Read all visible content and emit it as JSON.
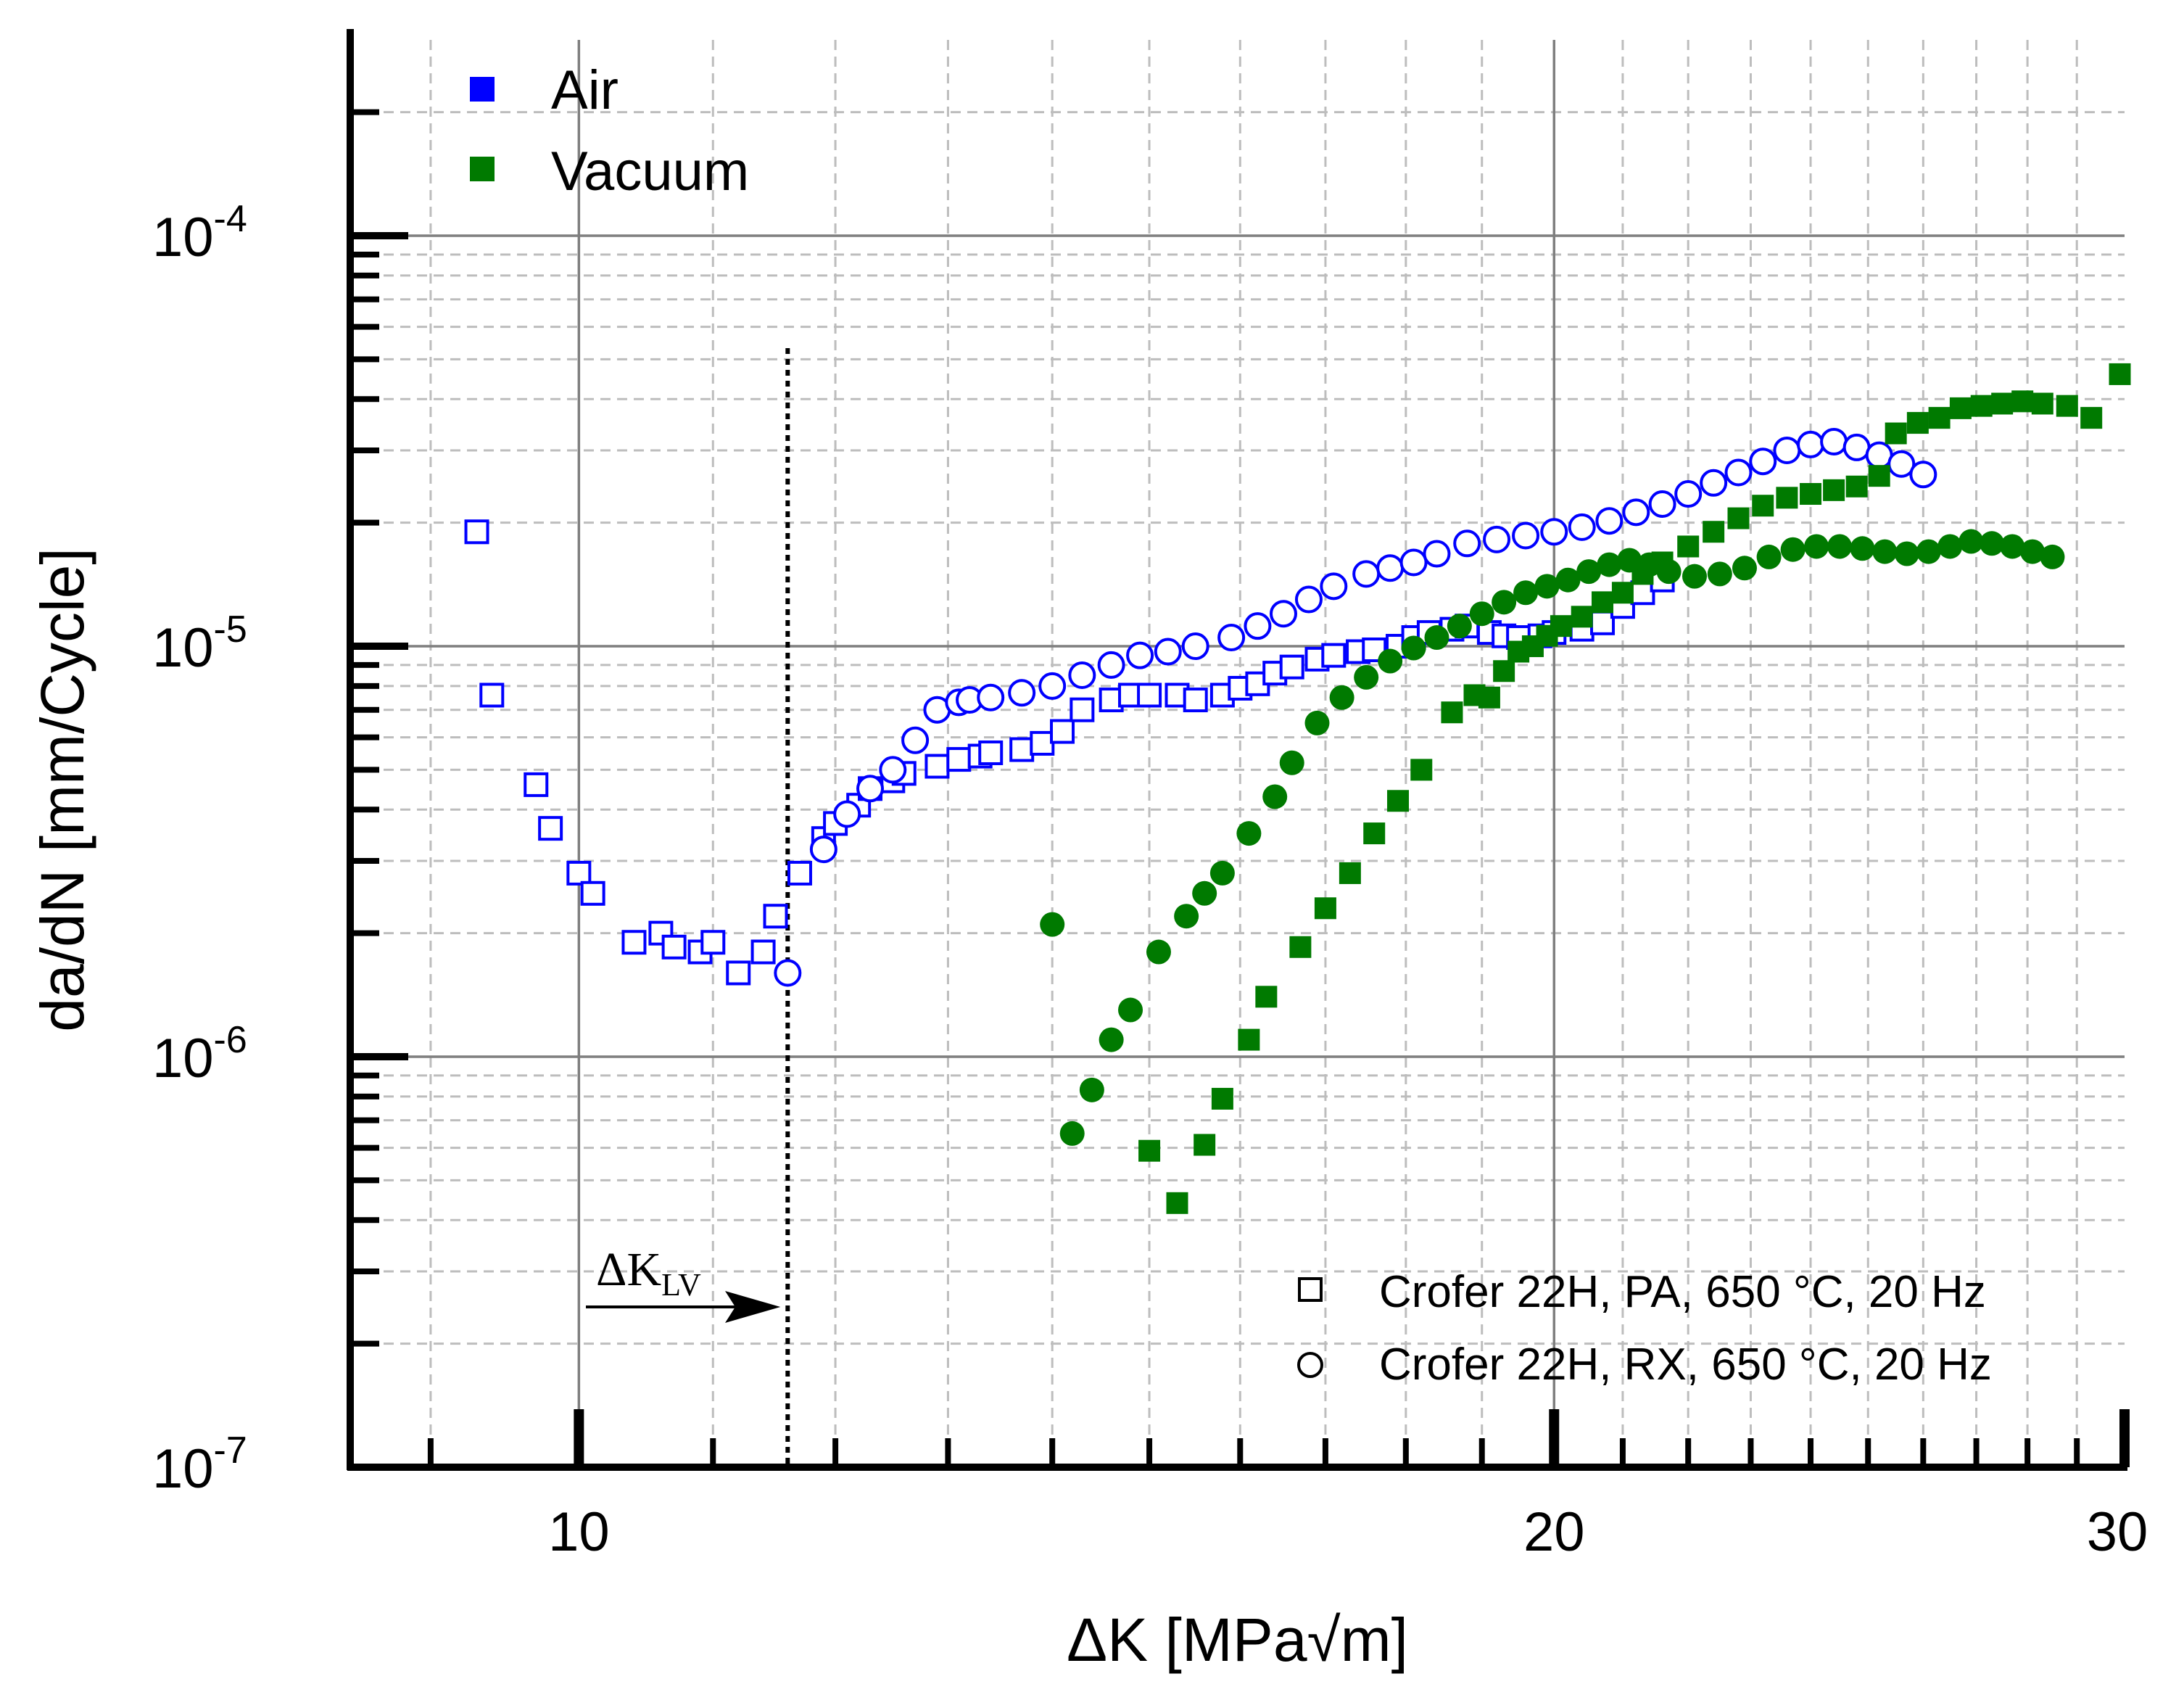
{
  "chart_data": {
    "type": "scatter",
    "x_scale": "log",
    "y_scale": "log",
    "xlim": [
      8.5,
      30
    ],
    "ylim": [
      1e-07,
      0.0003
    ],
    "grid": true,
    "xlabel": "ΔK [MPa√m]",
    "ylabel": "da/dN [mm/Cycle]",
    "x_ticks": [
      {
        "value": 10,
        "label": "10"
      },
      {
        "value": 20,
        "label": "20"
      },
      {
        "value": 30,
        "label": "30"
      }
    ],
    "y_ticks": [
      {
        "value": 1e-07,
        "base": "10",
        "exp": "-7"
      },
      {
        "value": 1e-06,
        "base": "10",
        "exp": "-6"
      },
      {
        "value": 1e-05,
        "base": "10",
        "exp": "-5"
      },
      {
        "value": 0.0001,
        "base": "10",
        "exp": "-4"
      }
    ],
    "color_legend": [
      {
        "label": "Air",
        "color": "#0000ff"
      },
      {
        "label": "Vacuum",
        "color": "#007a00"
      }
    ],
    "marker_legend": [
      {
        "marker": "square",
        "label": "Crofer 22H, PA, 650 °C, 20 Hz"
      },
      {
        "marker": "circle",
        "label": "Crofer 22H, RX, 650 °C, 20 Hz"
      }
    ],
    "annotation": {
      "text": "ΔK",
      "subscript": "LV",
      "x_value": 11.6
    },
    "series": [
      {
        "name": "Air, Crofer 22H, PA",
        "color": "#0000ff",
        "marker": "square",
        "filled": false,
        "points": [
          [
            9.3,
            1.9e-05
          ],
          [
            9.4,
            7.6e-06
          ],
          [
            9.7,
            4.6e-06
          ],
          [
            9.8,
            3.6e-06
          ],
          [
            10.0,
            2.8e-06
          ],
          [
            10.1,
            2.5e-06
          ],
          [
            10.4,
            1.9e-06
          ],
          [
            10.6,
            2e-06
          ],
          [
            10.7,
            1.85e-06
          ],
          [
            10.9,
            1.8e-06
          ],
          [
            11.0,
            1.9e-06
          ],
          [
            11.2,
            1.6e-06
          ],
          [
            11.4,
            1.8e-06
          ],
          [
            11.5,
            2.2e-06
          ],
          [
            11.7,
            2.8e-06
          ],
          [
            11.9,
            3.4e-06
          ],
          [
            12.0,
            3.7e-06
          ],
          [
            12.2,
            4.1e-06
          ],
          [
            12.3,
            4.5e-06
          ],
          [
            12.5,
            4.7e-06
          ],
          [
            12.6,
            4.9e-06
          ],
          [
            12.9,
            5.1e-06
          ],
          [
            13.1,
            5.3e-06
          ],
          [
            13.3,
            5.4e-06
          ],
          [
            13.4,
            5.5e-06
          ],
          [
            13.7,
            5.6e-06
          ],
          [
            13.9,
            5.8e-06
          ],
          [
            14.1,
            6.2e-06
          ],
          [
            14.3,
            7e-06
          ],
          [
            14.6,
            7.4e-06
          ],
          [
            14.8,
            7.6e-06
          ],
          [
            15.0,
            7.6e-06
          ],
          [
            15.3,
            7.6e-06
          ],
          [
            15.5,
            7.4e-06
          ],
          [
            15.8,
            7.6e-06
          ],
          [
            16.0,
            7.9e-06
          ],
          [
            16.2,
            8.1e-06
          ],
          [
            16.4,
            8.6e-06
          ],
          [
            16.6,
            8.9e-06
          ],
          [
            16.9,
            9.3e-06
          ],
          [
            17.1,
            9.5e-06
          ],
          [
            17.4,
            9.7e-06
          ],
          [
            17.6,
            9.8e-06
          ],
          [
            17.9,
            1e-05
          ],
          [
            18.1,
            1.05e-05
          ],
          [
            18.3,
            1.08e-05
          ],
          [
            18.6,
            1.1e-05
          ],
          [
            18.8,
            1.12e-05
          ],
          [
            19.1,
            1.08e-05
          ],
          [
            19.3,
            1.06e-05
          ],
          [
            19.5,
            1.05e-05
          ],
          [
            19.8,
            1.06e-05
          ],
          [
            20.0,
            1.08e-05
          ],
          [
            20.4,
            1.1e-05
          ],
          [
            20.7,
            1.14e-05
          ],
          [
            21.0,
            1.25e-05
          ],
          [
            21.3,
            1.35e-05
          ],
          [
            21.6,
            1.45e-05
          ]
        ]
      },
      {
        "name": "Air, Crofer 22H, RX",
        "color": "#0000ff",
        "marker": "circle",
        "filled": false,
        "points": [
          [
            11.6,
            1.6e-06
          ],
          [
            11.9,
            3.2e-06
          ],
          [
            12.1,
            3.9e-06
          ],
          [
            12.3,
            4.5e-06
          ],
          [
            12.5,
            5e-06
          ],
          [
            12.7,
            5.9e-06
          ],
          [
            12.9,
            7e-06
          ],
          [
            13.1,
            7.3e-06
          ],
          [
            13.2,
            7.4e-06
          ],
          [
            13.4,
            7.5e-06
          ],
          [
            13.7,
            7.7e-06
          ],
          [
            14.0,
            8e-06
          ],
          [
            14.3,
            8.5e-06
          ],
          [
            14.6,
            9e-06
          ],
          [
            14.9,
            9.5e-06
          ],
          [
            15.2,
            9.7e-06
          ],
          [
            15.5,
            1e-05
          ],
          [
            15.9,
            1.05e-05
          ],
          [
            16.2,
            1.12e-05
          ],
          [
            16.5,
            1.2e-05
          ],
          [
            16.8,
            1.3e-05
          ],
          [
            17.1,
            1.4e-05
          ],
          [
            17.5,
            1.5e-05
          ],
          [
            17.8,
            1.55e-05
          ],
          [
            18.1,
            1.6e-05
          ],
          [
            18.4,
            1.68e-05
          ],
          [
            18.8,
            1.78e-05
          ],
          [
            19.2,
            1.82e-05
          ],
          [
            19.6,
            1.86e-05
          ],
          [
            20.0,
            1.9e-05
          ],
          [
            20.4,
            1.95e-05
          ],
          [
            20.8,
            2.02e-05
          ],
          [
            21.2,
            2.12e-05
          ],
          [
            21.6,
            2.22e-05
          ],
          [
            22.0,
            2.35e-05
          ],
          [
            22.4,
            2.5e-05
          ],
          [
            22.8,
            2.65e-05
          ],
          [
            23.2,
            2.82e-05
          ],
          [
            23.6,
            3e-05
          ],
          [
            24.0,
            3.1e-05
          ],
          [
            24.4,
            3.15e-05
          ],
          [
            24.8,
            3.05e-05
          ],
          [
            25.2,
            2.92e-05
          ],
          [
            25.6,
            2.78e-05
          ],
          [
            26.0,
            2.62e-05
          ]
        ]
      },
      {
        "name": "Vacuum, Crofer 22H, PA",
        "color": "#007a00",
        "marker": "square",
        "filled": true,
        "points": [
          [
            15.0,
            5.9e-07
          ],
          [
            15.3,
            4.4e-07
          ],
          [
            15.6,
            6.1e-07
          ],
          [
            15.8,
            7.9e-07
          ],
          [
            16.1,
            1.1e-06
          ],
          [
            16.3,
            1.4e-06
          ],
          [
            16.7,
            1.85e-06
          ],
          [
            17.0,
            2.3e-06
          ],
          [
            17.3,
            2.8e-06
          ],
          [
            17.6,
            3.5e-06
          ],
          [
            17.9,
            4.2e-06
          ],
          [
            18.2,
            5e-06
          ],
          [
            18.6,
            6.9e-06
          ],
          [
            18.9,
            7.6e-06
          ],
          [
            19.1,
            7.5e-06
          ],
          [
            19.3,
            8.7e-06
          ],
          [
            19.5,
            9.7e-06
          ],
          [
            19.7,
            1e-05
          ],
          [
            19.9,
            1.06e-05
          ],
          [
            20.1,
            1.12e-05
          ],
          [
            20.4,
            1.18e-05
          ],
          [
            20.7,
            1.28e-05
          ],
          [
            21.0,
            1.35e-05
          ],
          [
            21.3,
            1.5e-05
          ],
          [
            21.6,
            1.6e-05
          ],
          [
            22.0,
            1.75e-05
          ],
          [
            22.4,
            1.9e-05
          ],
          [
            22.8,
            2.05e-05
          ],
          [
            23.2,
            2.2e-05
          ],
          [
            23.6,
            2.3e-05
          ],
          [
            24.0,
            2.35e-05
          ],
          [
            24.4,
            2.4e-05
          ],
          [
            24.8,
            2.45e-05
          ],
          [
            25.2,
            2.6e-05
          ],
          [
            25.5,
            3.3e-05
          ],
          [
            25.9,
            3.5e-05
          ],
          [
            26.3,
            3.6e-05
          ],
          [
            26.7,
            3.8e-05
          ],
          [
            27.1,
            3.85e-05
          ],
          [
            27.5,
            3.9e-05
          ],
          [
            27.9,
            3.95e-05
          ],
          [
            28.3,
            3.9e-05
          ],
          [
            28.8,
            3.85e-05
          ],
          [
            29.3,
            3.6e-05
          ],
          [
            29.9,
            4.6e-05
          ]
        ]
      },
      {
        "name": "Vacuum, Crofer 22H, RX",
        "color": "#007a00",
        "marker": "circle",
        "filled": true,
        "points": [
          [
            14.0,
            2.1e-06
          ],
          [
            14.2,
            6.5e-07
          ],
          [
            14.4,
            8.3e-07
          ],
          [
            14.6,
            1.1e-06
          ],
          [
            14.8,
            1.3e-06
          ],
          [
            15.1,
            1.8e-06
          ],
          [
            15.4,
            2.2e-06
          ],
          [
            15.6,
            2.5e-06
          ],
          [
            15.8,
            2.8e-06
          ],
          [
            16.1,
            3.5e-06
          ],
          [
            16.4,
            4.3e-06
          ],
          [
            16.6,
            5.2e-06
          ],
          [
            16.9,
            6.5e-06
          ],
          [
            17.2,
            7.5e-06
          ],
          [
            17.5,
            8.4e-06
          ],
          [
            17.8,
            9.2e-06
          ],
          [
            18.1,
            9.9e-06
          ],
          [
            18.4,
            1.05e-05
          ],
          [
            18.7,
            1.12e-05
          ],
          [
            19.0,
            1.2e-05
          ],
          [
            19.3,
            1.28e-05
          ],
          [
            19.6,
            1.35e-05
          ],
          [
            19.9,
            1.4e-05
          ],
          [
            20.2,
            1.45e-05
          ],
          [
            20.5,
            1.52e-05
          ],
          [
            20.8,
            1.58e-05
          ],
          [
            21.1,
            1.62e-05
          ],
          [
            21.4,
            1.58e-05
          ],
          [
            21.7,
            1.52e-05
          ],
          [
            22.1,
            1.48e-05
          ],
          [
            22.5,
            1.5e-05
          ],
          [
            22.9,
            1.55e-05
          ],
          [
            23.3,
            1.65e-05
          ],
          [
            23.7,
            1.72e-05
          ],
          [
            24.1,
            1.75e-05
          ],
          [
            24.5,
            1.75e-05
          ],
          [
            24.9,
            1.73e-05
          ],
          [
            25.3,
            1.7e-05
          ],
          [
            25.7,
            1.68e-05
          ],
          [
            26.1,
            1.7e-05
          ],
          [
            26.5,
            1.75e-05
          ],
          [
            26.9,
            1.8e-05
          ],
          [
            27.3,
            1.78e-05
          ],
          [
            27.7,
            1.75e-05
          ],
          [
            28.1,
            1.7e-05
          ],
          [
            28.5,
            1.65e-05
          ]
        ]
      }
    ]
  }
}
